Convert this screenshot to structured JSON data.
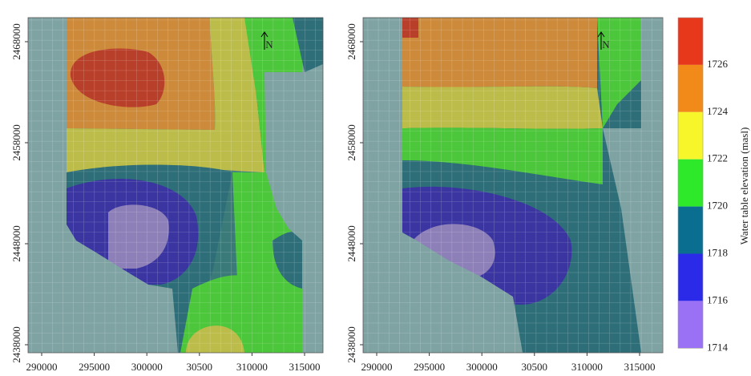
{
  "panels": [
    {
      "y_ticks": [
        "2468000",
        "2458000",
        "2448000",
        "2438000"
      ],
      "x_ticks": [
        "290000",
        "295000",
        "300000",
        "30500",
        "310000",
        "315000"
      ],
      "north": "N"
    },
    {
      "y_ticks": [
        "2468000",
        "2458000",
        "2448000",
        "2438000"
      ],
      "x_ticks": [
        "290000",
        "295000",
        "300000",
        "30500",
        "310000",
        "315000"
      ],
      "north": "N"
    }
  ],
  "legend": {
    "title": "Water table elevation (masl)",
    "bands": [
      {
        "label": "1726",
        "color": "#e8381c"
      },
      {
        "label": "1724",
        "color": "#f28a1a"
      },
      {
        "label": "1722",
        "color": "#f6f62a"
      },
      {
        "label": "1720",
        "color": "#2ee82a"
      },
      {
        "label": "1718",
        "color": "#0a6e90"
      },
      {
        "label": "1716",
        "color": "#2a2ae8"
      },
      {
        "label": "1714",
        "color": "#9a70f4"
      }
    ]
  }
}
